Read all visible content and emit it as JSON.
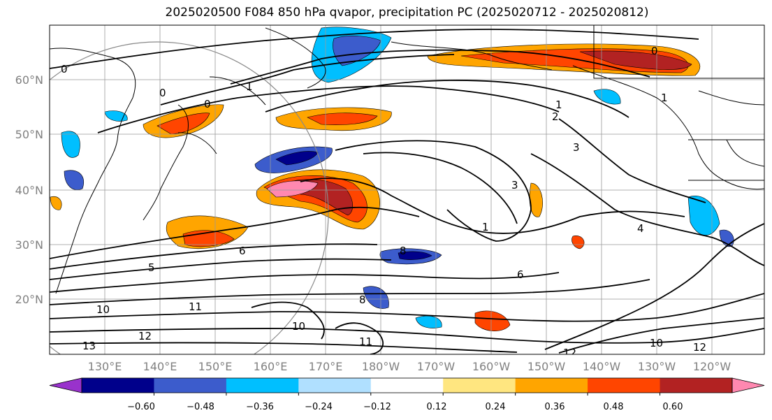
{
  "title": "2025020500 F084 850 hPa qvapor, precipitation PC (2025020712 - 2025020812)",
  "lat_labels": [
    "60°N",
    "50°N",
    "40°N",
    "30°N",
    "20°N"
  ],
  "lon_labels": [
    "130°E",
    "140°E",
    "150°E",
    "160°E",
    "170°E",
    "180°W",
    "170°W",
    "160°W",
    "150°W",
    "140°W",
    "130°W",
    "120°W"
  ],
  "colorbar": {
    "ticks": [
      "−0.60",
      "−0.48",
      "−0.36",
      "−0.24",
      "−0.12",
      "0.12",
      "0.24",
      "0.36",
      "0.48",
      "0.60"
    ],
    "colors": [
      "#9932cc",
      "#00008b",
      "#3c5ccc",
      "#00bfff",
      "#b0e0ff",
      "#ffffff",
      "#ffe680",
      "#ffa500",
      "#ff4500",
      "#b22222",
      "#ff88b0"
    ]
  },
  "contour_labels": [
    "0",
    "0",
    "0",
    "0",
    "1",
    "1",
    "1",
    "1",
    "2",
    "3",
    "3",
    "4",
    "5",
    "6",
    "6",
    "8",
    "8",
    "10",
    "10",
    "10",
    "11",
    "11",
    "12",
    "12",
    "12",
    "13"
  ]
}
